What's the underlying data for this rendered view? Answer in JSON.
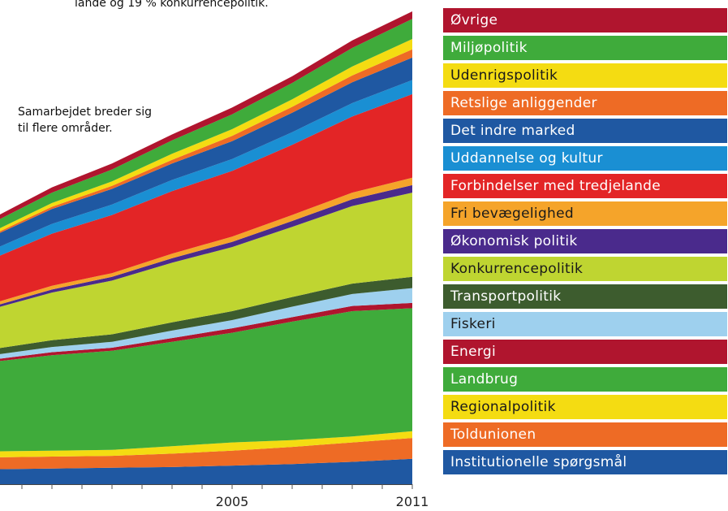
{
  "annotations": {
    "top": "lande og 19 % konkurrencepolitik.",
    "middle_line1": "Samarbejdet breder sig",
    "middle_line2": "til flere områder."
  },
  "chart_data": {
    "type": "area",
    "stacked": true,
    "x": [
      1997,
      1999,
      2001,
      2003,
      2005,
      2007,
      2009,
      2011
    ],
    "x_tick_labels": [
      {
        "x": 2005,
        "label": "2005"
      },
      {
        "x": 2011,
        "label": "2011"
      }
    ],
    "grid": false,
    "legend_placement": "right",
    "series": [
      {
        "name": "Institutionelle spørgsmål",
        "color": "#1f58a2",
        "values": [
          20,
          21,
          22,
          23,
          25,
          27,
          30,
          34
        ]
      },
      {
        "name": "Toldunionen",
        "color": "#ee6b25",
        "values": [
          16,
          16,
          16,
          18,
          20,
          23,
          26,
          28
        ]
      },
      {
        "name": "Regionalpolitik",
        "color": "#f4dc12",
        "values": [
          8,
          8,
          8,
          10,
          11,
          9,
          8,
          9
        ]
      },
      {
        "name": "Landbrug",
        "color": "#3fab3b",
        "values": [
          120,
          128,
          133,
          140,
          147,
          159,
          168,
          165
        ]
      },
      {
        "name": "Energi",
        "color": "#b0152e",
        "values": [
          3,
          4,
          4,
          5,
          6,
          6,
          7,
          7
        ]
      },
      {
        "name": "Fiskeri",
        "color": "#9ed0ee",
        "values": [
          6,
          7,
          8,
          10,
          11,
          14,
          16,
          20
        ]
      },
      {
        "name": "Transportpolitik",
        "color": "#3d5c2e",
        "values": [
          8,
          9,
          10,
          11,
          12,
          13,
          14,
          15
        ]
      },
      {
        "name": "Konkurrencepolitik",
        "color": "#bfd531",
        "values": [
          54,
          64,
          72,
          80,
          86,
          94,
          104,
          113
        ]
      },
      {
        "name": "Økonomisk politik",
        "color": "#4a2a8c",
        "values": [
          3,
          4,
          5,
          6,
          7,
          8,
          9,
          10
        ]
      },
      {
        "name": "Fri bevægelighed",
        "color": "#f5a42a",
        "values": [
          4,
          5,
          5,
          6,
          7,
          8,
          9,
          10
        ]
      },
      {
        "name": "Forbindelser med tredjelande",
        "color": "#e32526",
        "values": [
          60,
          70,
          78,
          84,
          88,
          94,
          102,
          112
        ]
      },
      {
        "name": "Uddannelse og kultur",
        "color": "#1a8fd3",
        "values": [
          12,
          13,
          14,
          15,
          16,
          17,
          18,
          19
        ]
      },
      {
        "name": "Det indre marked",
        "color": "#1f58a2",
        "values": [
          18,
          20,
          21,
          22,
          24,
          26,
          28,
          30
        ]
      },
      {
        "name": "Retslige anliggender",
        "color": "#ee6b25",
        "values": [
          2,
          3,
          4,
          5,
          7,
          8,
          9,
          11
        ]
      },
      {
        "name": "Udenrigspolitik",
        "color": "#f4dc12",
        "values": [
          4,
          5,
          6,
          8,
          9,
          10,
          12,
          14
        ]
      },
      {
        "name": "Miljøpolitik",
        "color": "#3fab3b",
        "values": [
          12,
          14,
          16,
          18,
          20,
          22,
          25,
          27
        ]
      },
      {
        "name": "Øvrige",
        "color": "#b0152e",
        "values": [
          6,
          7,
          8,
          8,
          9,
          9,
          10,
          10
        ]
      }
    ],
    "legend_order": [
      "Øvrige",
      "Miljøpolitik",
      "Udenrigspolitik",
      "Retslige anliggender",
      "Det indre marked",
      "Uddannelse og kultur",
      "Forbindelser med tredjelande",
      "Fri bevægelighed",
      "Økonomisk politik",
      "Konkurrencepolitik",
      "Transportpolitik",
      "Fiskeri",
      "Energi",
      "Landbrug",
      "Regionalpolitik",
      "Toldunionen",
      "Institutionelle spørgsmål"
    ]
  }
}
